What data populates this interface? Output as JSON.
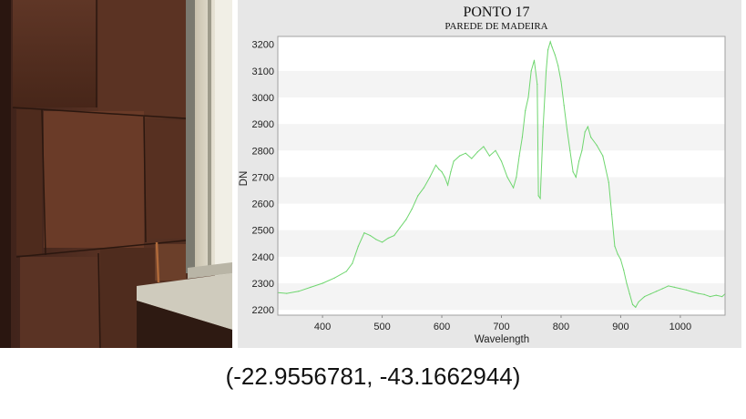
{
  "photo": {
    "subject": "wooden-wall-icon"
  },
  "chart_data": {
    "type": "line",
    "title": "PONTO 17",
    "subtitle": "PAREDE DE MADEIRA",
    "xlabel": "Wavelength",
    "ylabel": "DN",
    "xlim": [
      325,
      1075
    ],
    "ylim": [
      2180,
      3230
    ],
    "xticks": [
      400,
      500,
      600,
      700,
      800,
      900,
      1000
    ],
    "yticks": [
      2200,
      2300,
      2400,
      2500,
      2600,
      2700,
      2800,
      2900,
      3000,
      3100,
      3200
    ],
    "grid": "horizontal-bands",
    "series": [
      {
        "color": "#6fd66f",
        "x": [
          325,
          340,
          360,
          380,
          400,
          420,
          440,
          450,
          460,
          470,
          480,
          490,
          500,
          510,
          520,
          530,
          540,
          550,
          560,
          570,
          580,
          590,
          595,
          600,
          605,
          610,
          615,
          620,
          630,
          640,
          650,
          660,
          670,
          680,
          690,
          700,
          710,
          720,
          725,
          730,
          735,
          740,
          745,
          750,
          755,
          760,
          762,
          765,
          770,
          775,
          778,
          782,
          785,
          790,
          795,
          800,
          805,
          810,
          815,
          820,
          825,
          830,
          835,
          840,
          845,
          850,
          860,
          870,
          880,
          885,
          890,
          895,
          900,
          905,
          910,
          915,
          920,
          925,
          930,
          940,
          950,
          960,
          970,
          980,
          990,
          1000,
          1010,
          1020,
          1030,
          1040,
          1050,
          1060,
          1070,
          1075
        ],
        "y": [
          2265,
          2262,
          2270,
          2285,
          2300,
          2320,
          2345,
          2375,
          2440,
          2490,
          2480,
          2465,
          2455,
          2470,
          2480,
          2510,
          2540,
          2580,
          2630,
          2660,
          2700,
          2745,
          2730,
          2720,
          2700,
          2670,
          2720,
          2760,
          2780,
          2790,
          2770,
          2795,
          2815,
          2780,
          2800,
          2760,
          2700,
          2660,
          2700,
          2780,
          2850,
          2950,
          3000,
          3100,
          3140,
          3050,
          2630,
          2620,
          2890,
          3100,
          3180,
          3210,
          3190,
          3160,
          3120,
          3060,
          2970,
          2880,
          2800,
          2720,
          2700,
          2760,
          2800,
          2870,
          2890,
          2850,
          2820,
          2780,
          2680,
          2560,
          2440,
          2410,
          2390,
          2350,
          2300,
          2260,
          2220,
          2210,
          2230,
          2250,
          2260,
          2270,
          2280,
          2290,
          2285,
          2280,
          2275,
          2268,
          2262,
          2258,
          2250,
          2255,
          2250,
          2260
        ]
      }
    ]
  },
  "coordinates": {
    "text": "(-22.9556781, -43.1662944)"
  }
}
